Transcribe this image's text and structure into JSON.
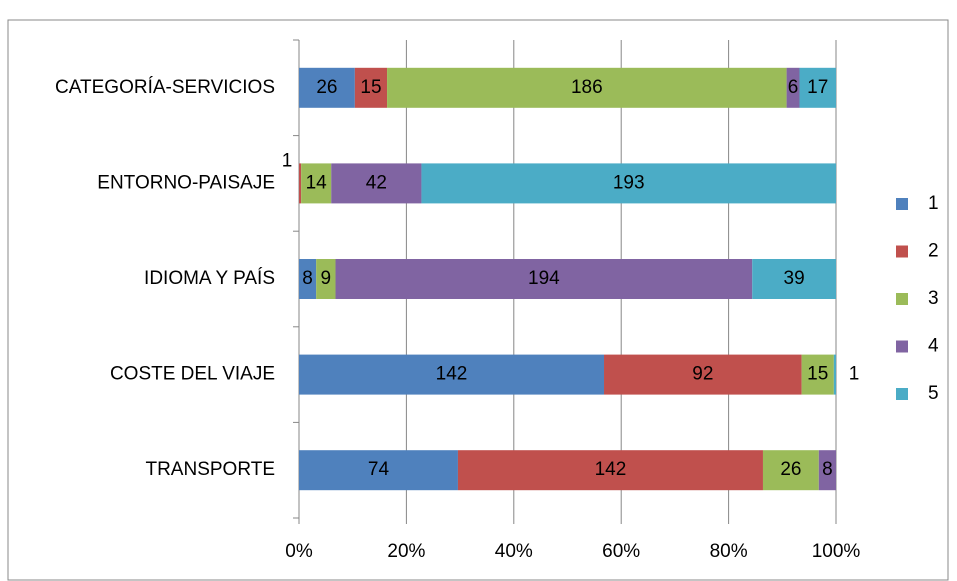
{
  "chart_data": {
    "type": "stacked_bar_100",
    "orientation": "horizontal",
    "categories": [
      "CATEGORÍA-SERVICIOS",
      "ENTORNO-PAISAJE",
      "IDIOMA Y PAÍS",
      "COSTE DEL VIAJE",
      "TRANSPORTE"
    ],
    "series": [
      {
        "name": "1",
        "color": "#4f81bd",
        "values": [
          26,
          null,
          8,
          142,
          74
        ]
      },
      {
        "name": "2",
        "color": "#c0504d",
        "values": [
          15,
          1,
          null,
          92,
          142
        ]
      },
      {
        "name": "3",
        "color": "#9bbb59",
        "values": [
          186,
          14,
          9,
          15,
          26
        ]
      },
      {
        "name": "4",
        "color": "#8064a2",
        "values": [
          6,
          42,
          194,
          null,
          8
        ]
      },
      {
        "name": "5",
        "color": "#4bacc6",
        "values": [
          17,
          193,
          39,
          1,
          null
        ]
      }
    ],
    "xlim": [
      0,
      100
    ],
    "xticks": [
      {
        "value": 0,
        "label": "0%"
      },
      {
        "value": 20,
        "label": "20%"
      },
      {
        "value": 40,
        "label": "40%"
      },
      {
        "value": 60,
        "label": "60%"
      },
      {
        "value": 80,
        "label": "80%"
      },
      {
        "value": 100,
        "label": "100%"
      }
    ],
    "grid": true,
    "legend": "right"
  }
}
